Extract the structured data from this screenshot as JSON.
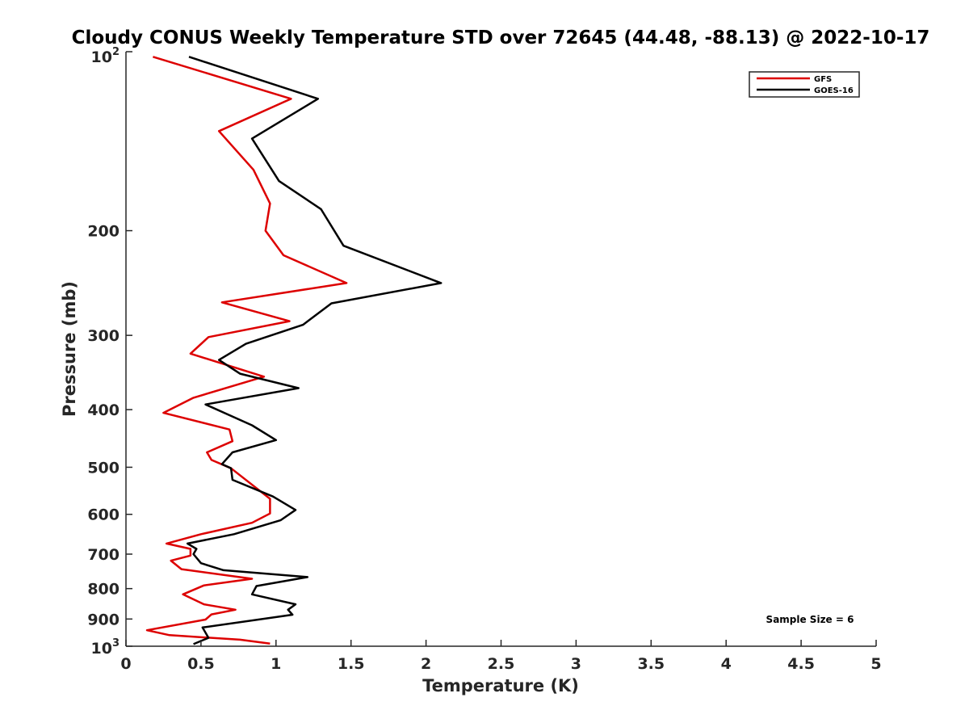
{
  "chart_data": {
    "type": "line",
    "title": "Cloudy CONUS Weekly Temperature STD over 72645 (44.48, -88.13) @ 2022-10-17",
    "xlabel": "Temperature (K)",
    "ylabel": "Pressure (mb)",
    "xlim": [
      0,
      5
    ],
    "ylim": [
      100,
      1000
    ],
    "yscale": "log",
    "yreversed": true,
    "xticks": [
      0,
      0.5,
      1,
      1.5,
      2,
      2.5,
      3,
      3.5,
      4,
      4.5,
      5
    ],
    "xtick_labels": [
      "0",
      "0.5",
      "1",
      "1.5",
      "2",
      "2.5",
      "3",
      "3.5",
      "4",
      "4.5",
      "5"
    ],
    "yticks": [
      200,
      300,
      400,
      500,
      600,
      700,
      800,
      900
    ],
    "ytick_labels": [
      "200",
      "300",
      "400",
      "500",
      "600",
      "700",
      "800",
      "900"
    ],
    "ytick_top": {
      "value": 100,
      "base": "10",
      "exp": "2"
    },
    "ytick_bottom": {
      "value": 1000,
      "base": "10",
      "exp": "3"
    },
    "legend_position": "top-right",
    "annotation": "Sample Size = 6",
    "series": [
      {
        "name": "GFS",
        "color": "#dd0000",
        "x": [
          0.18,
          1.1,
          0.62,
          0.85,
          0.96,
          0.93,
          1.05,
          1.47,
          0.64,
          1.09,
          0.55,
          0.43,
          0.92,
          0.45,
          0.25,
          0.69,
          0.71,
          0.54,
          0.57,
          0.7,
          0.96,
          0.96,
          0.84,
          0.5,
          0.27,
          0.43,
          0.43,
          0.3,
          0.37,
          0.84,
          0.52,
          0.38,
          0.52,
          0.73,
          0.57,
          0.53,
          0.14,
          0.29,
          0.76,
          0.96
        ],
        "y": [
          102,
          120,
          136,
          158,
          180,
          200,
          220,
          245,
          264,
          284,
          302,
          322,
          352,
          382,
          405,
          432,
          452,
          472,
          486,
          502,
          565,
          598,
          620,
          648,
          672,
          686,
          704,
          718,
          742,
          770,
          790,
          818,
          850,
          868,
          884,
          902,
          940,
          958,
          975,
          990
        ]
      },
      {
        "name": "GOES-16",
        "color": "#000000",
        "x": [
          0.42,
          1.28,
          0.84,
          1.02,
          1.3,
          1.45,
          2.1,
          1.37,
          1.18,
          0.8,
          0.62,
          0.76,
          1.15,
          0.53,
          0.84,
          1.0,
          0.71,
          0.64,
          0.7,
          0.71,
          0.98,
          1.13,
          1.03,
          0.72,
          0.41,
          0.47,
          0.45,
          0.5,
          0.65,
          1.21,
          0.87,
          0.84,
          1.13,
          1.08,
          1.11,
          0.51,
          0.55,
          0.45
        ],
        "y": [
          102,
          120,
          140,
          165,
          184,
          212,
          245,
          265,
          288,
          310,
          330,
          348,
          368,
          392,
          425,
          450,
          472,
          494,
          502,
          525,
          560,
          590,
          614,
          648,
          672,
          686,
          700,
          725,
          745,
          765,
          792,
          818,
          850,
          868,
          885,
          930,
          968,
          992
        ]
      }
    ]
  }
}
